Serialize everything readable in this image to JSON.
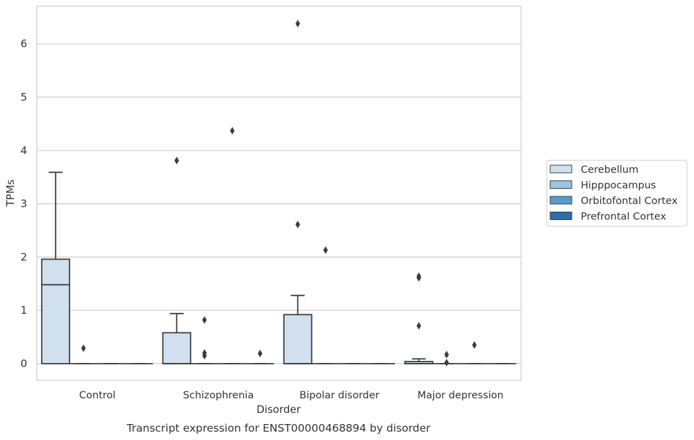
{
  "chart_data": {
    "type": "box",
    "title": "Transcript expression for ENST00000468894 by disorder",
    "xlabel": "Disorder",
    "ylabel": "TPMs",
    "ylim": [
      -0.3,
      6.7
    ],
    "yticks": [
      0,
      1,
      2,
      3,
      4,
      5,
      6
    ],
    "categories": [
      "Control",
      "Schizophrenia",
      "Bipolar disorder",
      "Major depression"
    ],
    "grid": "horizontal",
    "legend_position": "right",
    "series": [
      {
        "name": "Cerebellum",
        "color": "#d1e0ef",
        "boxes": [
          {
            "q1": 0,
            "median": 1.48,
            "q3": 1.96,
            "whisker_low": 0,
            "whisker_high": 3.59,
            "outliers": []
          },
          {
            "q1": 0,
            "median": 0,
            "q3": 0.58,
            "whisker_low": 0,
            "whisker_high": 0.94,
            "outliers": [
              3.81
            ]
          },
          {
            "q1": 0,
            "median": 0,
            "q3": 0.92,
            "whisker_low": 0,
            "whisker_high": 1.28,
            "outliers": [
              2.61,
              6.38
            ]
          },
          {
            "q1": 0,
            "median": 0,
            "q3": 0.04,
            "whisker_low": 0,
            "whisker_high": 0.09,
            "outliers": [
              0.71,
              1.61,
              1.64
            ]
          }
        ]
      },
      {
        "name": "Hipppocampus",
        "color": "#9ac5e0",
        "boxes": [
          {
            "q1": 0,
            "median": 0,
            "q3": 0,
            "whisker_low": 0,
            "whisker_high": 0,
            "outliers": [
              0.29
            ]
          },
          {
            "q1": 0,
            "median": 0,
            "q3": 0,
            "whisker_low": 0,
            "whisker_high": 0,
            "outliers": [
              0.15,
              0.2,
              0.82
            ]
          },
          {
            "q1": 0,
            "median": 0,
            "q3": 0,
            "whisker_low": 0,
            "whisker_high": 0,
            "outliers": [
              2.13
            ]
          },
          {
            "q1": 0,
            "median": 0,
            "q3": 0,
            "whisker_low": 0,
            "whisker_high": 0,
            "outliers": [
              0.02,
              0.17
            ]
          }
        ]
      },
      {
        "name": "Orbitofontal Cortex",
        "color": "#5b9bc9",
        "boxes": [
          {
            "q1": 0,
            "median": 0,
            "q3": 0,
            "whisker_low": 0,
            "whisker_high": 0,
            "outliers": []
          },
          {
            "q1": 0,
            "median": 0,
            "q3": 0,
            "whisker_low": 0,
            "whisker_high": 0,
            "outliers": [
              4.37
            ]
          },
          {
            "q1": 0,
            "median": 0,
            "q3": 0,
            "whisker_low": 0,
            "whisker_high": 0,
            "outliers": []
          },
          {
            "q1": 0,
            "median": 0,
            "q3": 0,
            "whisker_low": 0,
            "whisker_high": 0,
            "outliers": [
              0.35
            ]
          }
        ]
      },
      {
        "name": "Prefrontal Cortex",
        "color": "#2e6eab",
        "boxes": [
          {
            "q1": 0,
            "median": 0,
            "q3": 0,
            "whisker_low": 0,
            "whisker_high": 0,
            "outliers": []
          },
          {
            "q1": 0,
            "median": 0,
            "q3": 0,
            "whisker_low": 0,
            "whisker_high": 0,
            "outliers": [
              0.19
            ]
          },
          {
            "q1": 0,
            "median": 0,
            "q3": 0,
            "whisker_low": 0,
            "whisker_high": 0,
            "outliers": []
          },
          {
            "q1": 0,
            "median": 0,
            "q3": 0,
            "whisker_low": 0,
            "whisker_high": 0,
            "outliers": []
          }
        ]
      }
    ]
  }
}
